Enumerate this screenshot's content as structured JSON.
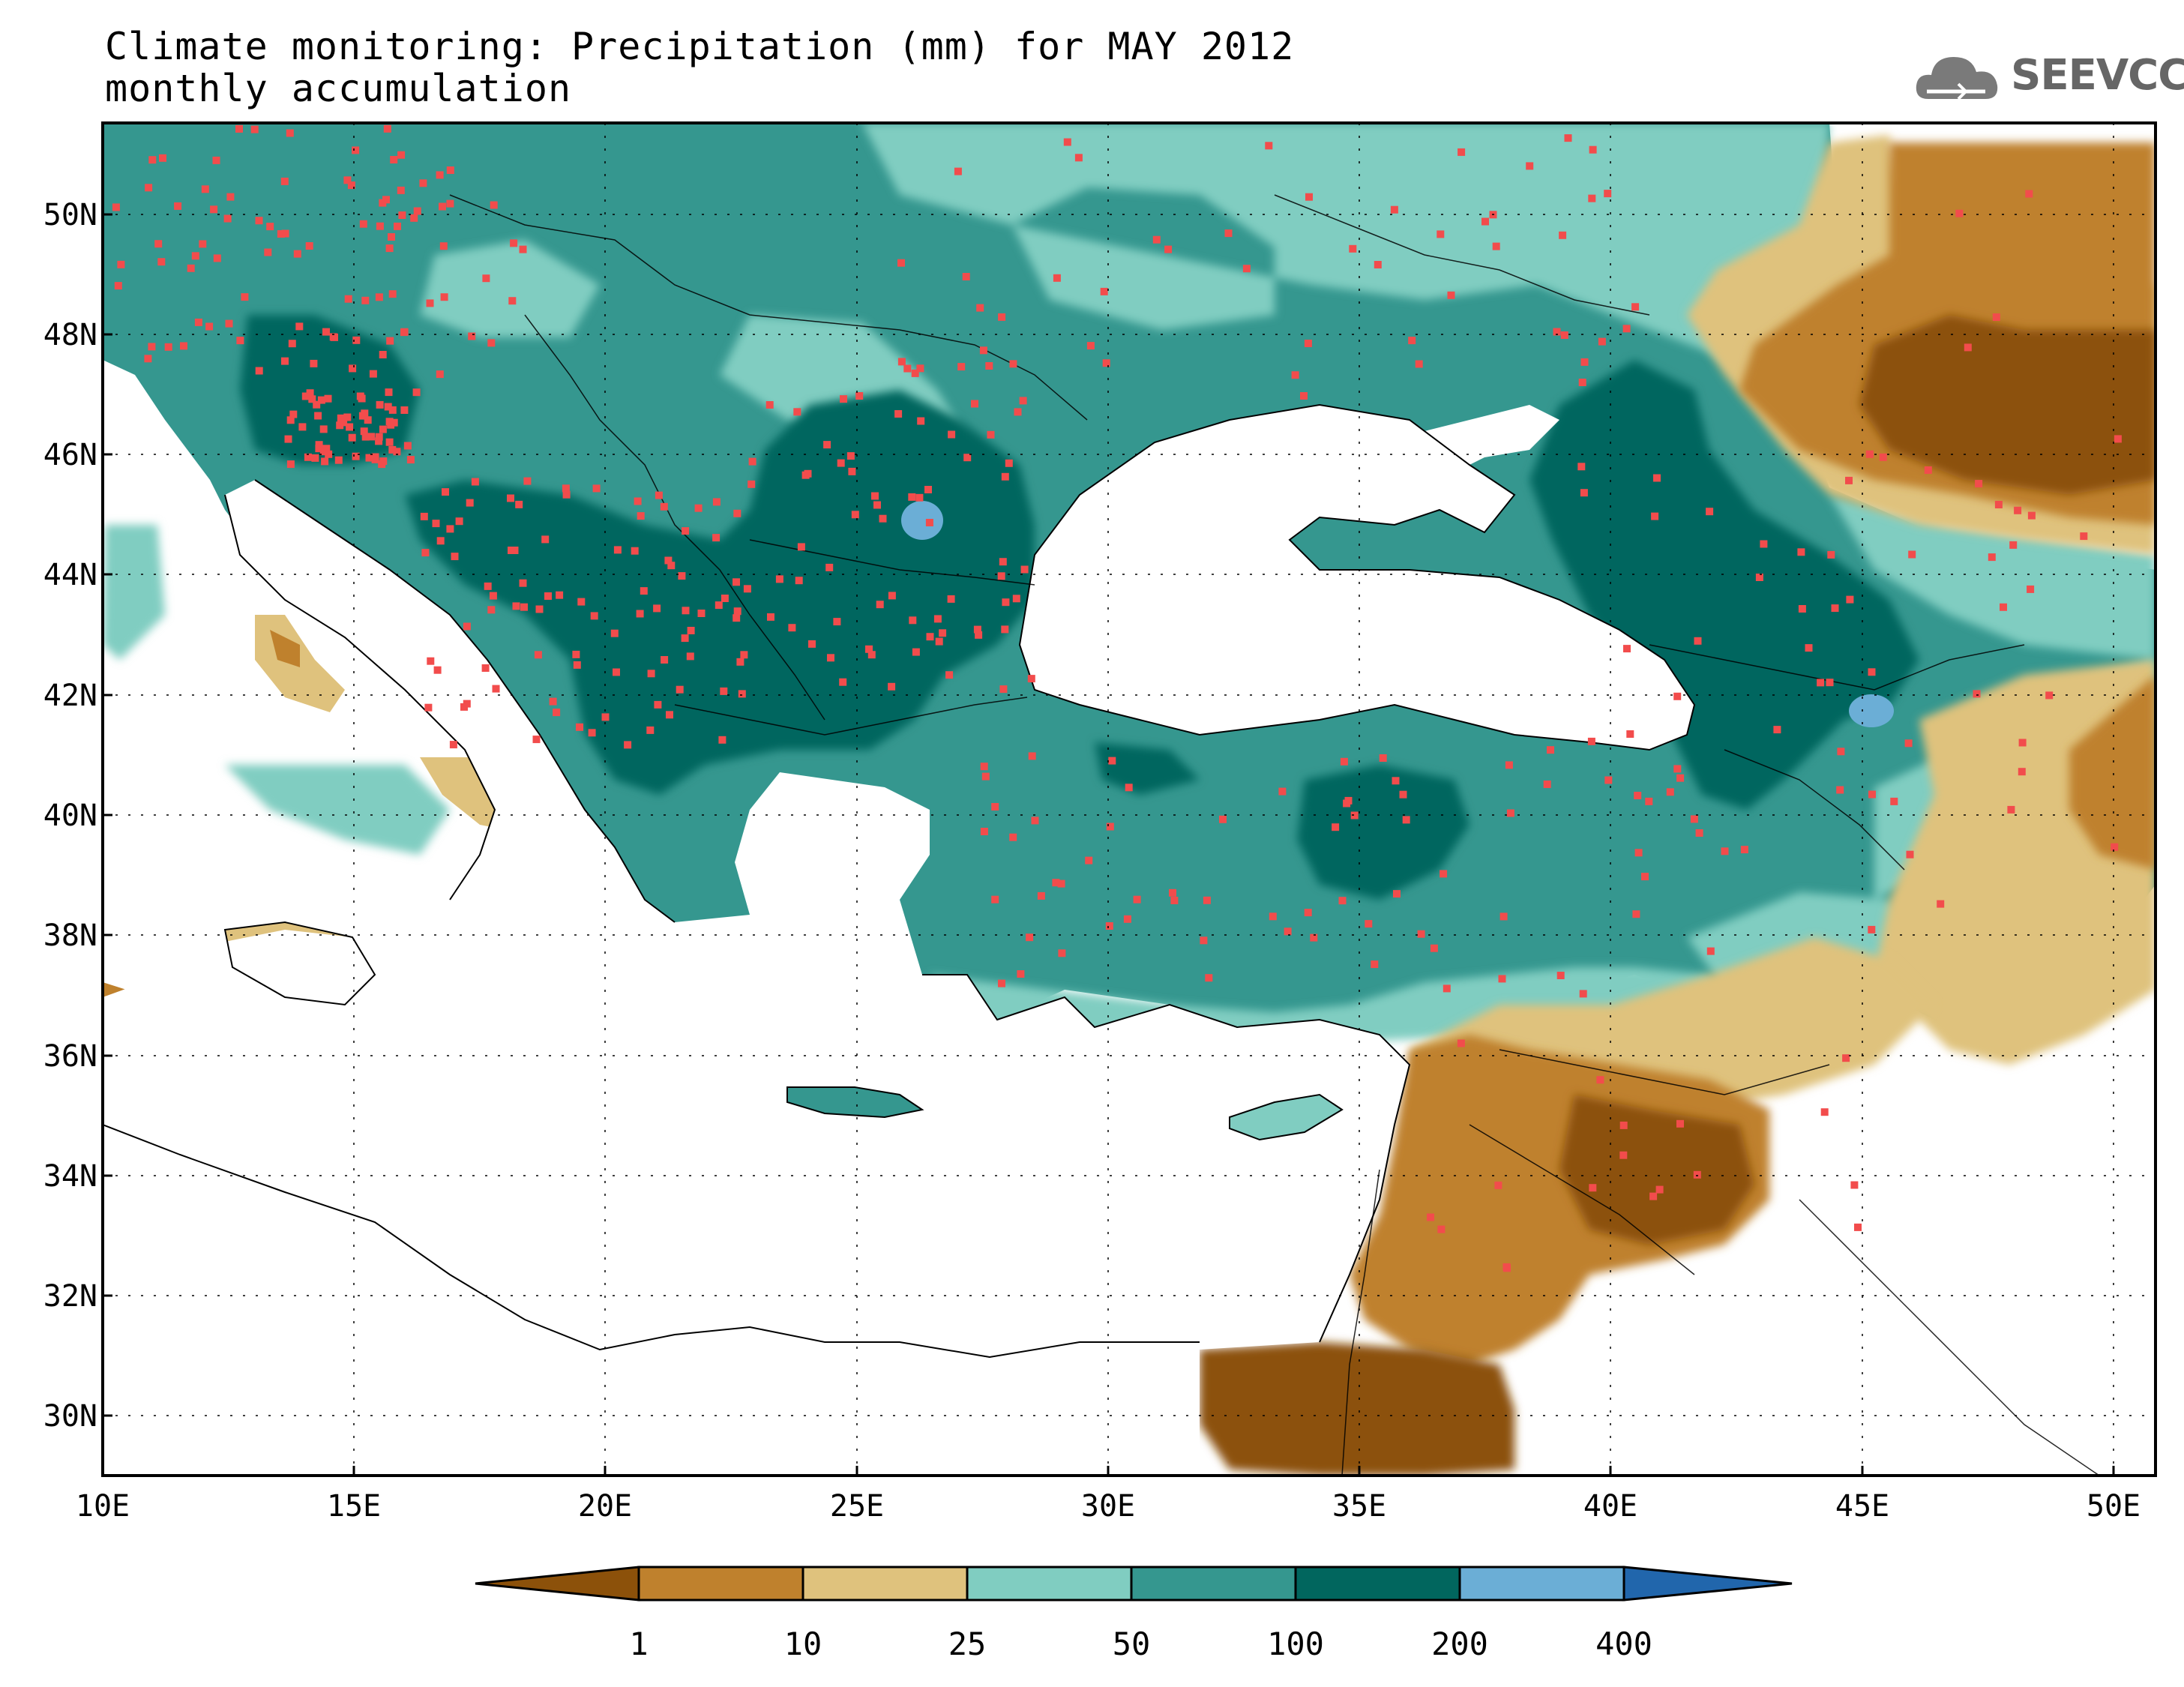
{
  "title": {
    "line1": "Climate monitoring: Precipitation (mm) for MAY 2012",
    "line2": "monthly accumulation"
  },
  "logo": {
    "text": "SEEVCCC",
    "icon": "cloud-icon"
  },
  "map": {
    "lon_range": [
      10,
      51
    ],
    "lat_range": [
      29,
      51.5
    ],
    "lat_ticks": [
      "30N",
      "32N",
      "34N",
      "36N",
      "38N",
      "40N",
      "42N",
      "44N",
      "46N",
      "48N",
      "50N"
    ],
    "lon_ticks": [
      "10E",
      "15E",
      "20E",
      "25E",
      "30E",
      "35E",
      "40E",
      "45E",
      "50E"
    ],
    "grid": "dotted",
    "station_color": "#f24c4c"
  },
  "colorbar": {
    "labels": [
      "1",
      "10",
      "25",
      "50",
      "100",
      "200",
      "400"
    ],
    "colors": [
      "#8c510a",
      "#bf812d",
      "#dfc27d",
      "#80cdc1",
      "#35978f",
      "#01665e",
      "#6baed6",
      "#2166ac"
    ]
  }
}
